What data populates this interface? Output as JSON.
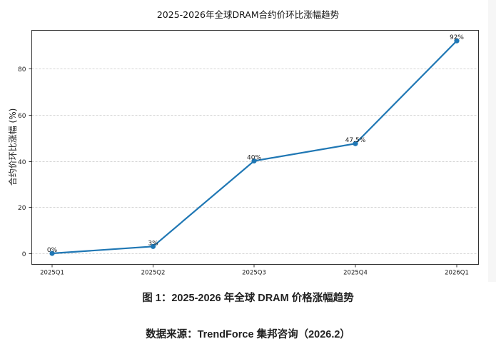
{
  "chart_data": {
    "type": "line",
    "title": "2025-2026年全球DRAM合约价环比涨幅趋势",
    "xlabel": "",
    "ylabel": "合约价环比涨幅 (%)",
    "categories": [
      "2025Q1",
      "2025Q2",
      "2025Q3",
      "2025Q4",
      "2026Q1"
    ],
    "series": [
      {
        "name": "合约价环比涨幅",
        "values": [
          0,
          3,
          40,
          47.5,
          92
        ],
        "color": "#1f77b4"
      }
    ],
    "data_labels": [
      "0%",
      "3%",
      "40%",
      "47.5%",
      "92%"
    ],
    "yticks": [
      0,
      20,
      40,
      60,
      80
    ],
    "ylim": [
      -4.5,
      96.5
    ],
    "grid": {
      "y": true,
      "x": false,
      "style": "dashed"
    },
    "legend": null
  },
  "captions": {
    "figure": "图 1：2025-2026 年全球 DRAM 价格涨幅趋势",
    "source": "数据来源：TrendForce 集邦咨询（2026.2）"
  }
}
